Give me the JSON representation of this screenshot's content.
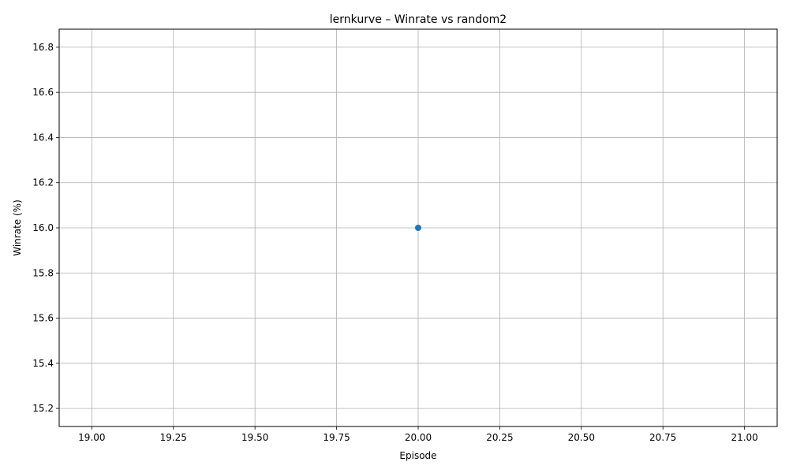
{
  "chart_data": {
    "type": "line",
    "title": "lernkurve – Winrate vs random2",
    "xlabel": "Episode",
    "ylabel": "Winrate (%)",
    "xlim": [
      18.9,
      21.1
    ],
    "ylim": [
      15.12,
      16.88
    ],
    "xticks": [
      "19.00",
      "19.25",
      "19.50",
      "19.75",
      "20.00",
      "20.25",
      "20.50",
      "20.75",
      "21.00"
    ],
    "xtick_values": [
      19.0,
      19.25,
      19.5,
      19.75,
      20.0,
      20.25,
      20.5,
      20.75,
      21.0
    ],
    "yticks": [
      "15.2",
      "15.4",
      "15.6",
      "15.8",
      "16.0",
      "16.2",
      "16.4",
      "16.6",
      "16.8"
    ],
    "ytick_values": [
      15.2,
      15.4,
      15.6,
      15.8,
      16.0,
      16.2,
      16.4,
      16.6,
      16.8
    ],
    "grid": true,
    "series": [
      {
        "x": [
          20
        ],
        "y": [
          16.0
        ],
        "color": "#1f77b4",
        "marker": "circle"
      }
    ],
    "colors": {
      "grid": "#b0b0b0",
      "axis": "#000000",
      "series": "#1f77b4"
    }
  }
}
